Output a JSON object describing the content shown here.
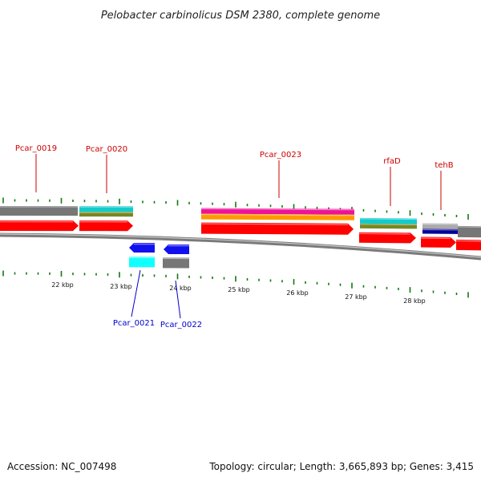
{
  "title": "Pelobacter carbinolicus DSM 2380, complete genome",
  "footer": {
    "accession": "Accession: NC_007498",
    "summary": "Topology: circular; Length: 3,665,893 bp; Genes: 3,415"
  },
  "colors": {
    "plus_label": "#cc0000",
    "minus_label": "#0000cc",
    "backbone": "#7a7a7a",
    "tick": "#117711",
    "cds": "#ff0000",
    "gray_feature": "#777777",
    "cyan_feature": "#11cccc",
    "olive_feature": "#778822",
    "magenta_feature": "#ee1199",
    "orange_feature": "#ff9900",
    "navy_feature": "#000099",
    "blue_feature": "#1111ee",
    "aqua_feature": "#11ffff"
  },
  "ticks": [
    {
      "label": "22 kbp"
    },
    {
      "label": "23 kbp"
    },
    {
      "label": "24 kbp"
    },
    {
      "label": "25 kbp"
    },
    {
      "label": "26 kbp"
    },
    {
      "label": "27 kbp"
    },
    {
      "label": "28 kbp"
    }
  ],
  "genes": {
    "plus": [
      {
        "label": "Pcar_0019"
      },
      {
        "label": "Pcar_0020"
      },
      {
        "label": "Pcar_0023"
      },
      {
        "label": "rfaD"
      },
      {
        "label": "tehB"
      }
    ],
    "minus": [
      {
        "label": "Pcar_0021"
      },
      {
        "label": "Pcar_0022"
      }
    ]
  }
}
